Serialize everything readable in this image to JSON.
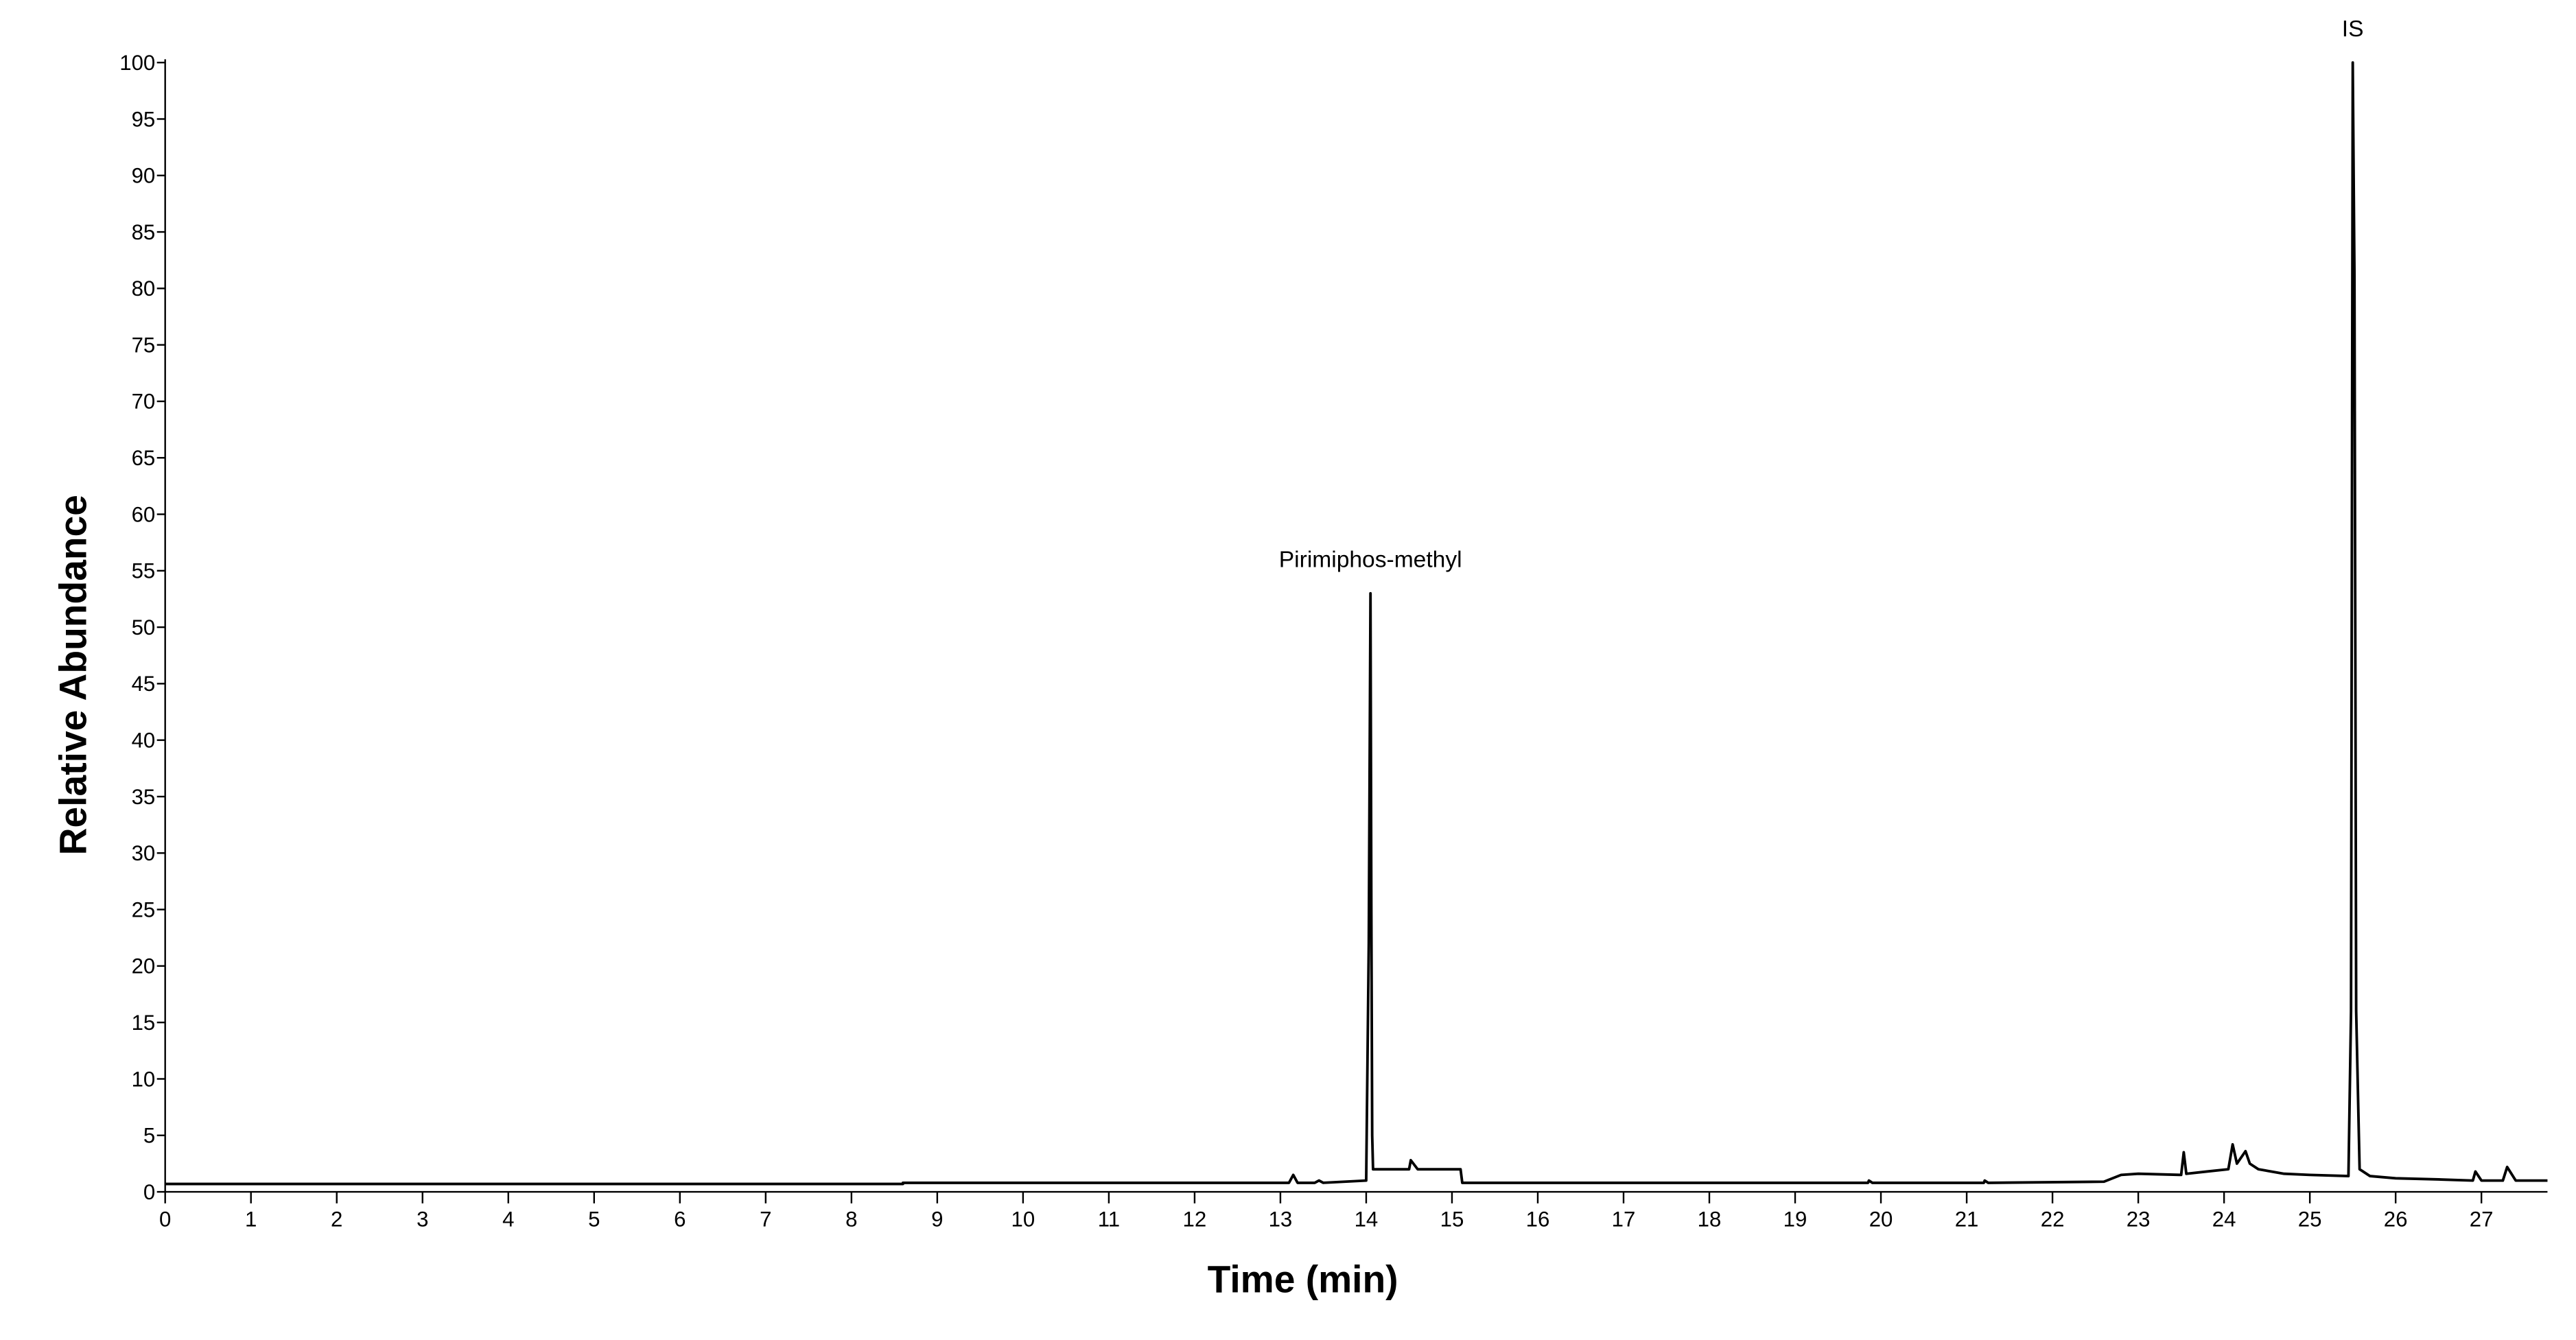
{
  "chart_data": {
    "type": "line",
    "xlabel": "Time (min)",
    "ylabel": "Relative Abundance",
    "color": "#000000",
    "x": [
      0,
      8.6,
      8.6,
      13.1,
      13.15,
      13.2,
      13.4,
      13.45,
      13.5,
      14.0,
      14.03,
      14.05,
      14.06,
      14.07,
      14.08,
      14.1,
      14.3,
      14.5,
      14.52,
      14.6,
      15.1,
      15.12,
      19.85,
      19.86,
      19.9,
      21.2,
      21.21,
      21.25,
      22.6,
      22.8,
      23.0,
      23.5,
      23.53,
      23.56,
      23.8,
      24.05,
      24.1,
      24.15,
      24.25,
      24.3,
      24.4,
      24.7,
      25.0,
      25.45,
      25.48,
      25.5,
      25.52,
      25.54,
      25.58,
      25.7,
      26.0,
      26.5,
      26.9,
      26.93,
      27.0,
      27.25,
      27.3,
      27.4,
      27.77
    ],
    "values": [
      0.7,
      0.7,
      0.8,
      0.8,
      1.5,
      0.8,
      0.8,
      1.0,
      0.8,
      1.0,
      22,
      53,
      25,
      5,
      2,
      2,
      2,
      2,
      2.8,
      2,
      2,
      0.8,
      0.8,
      1.0,
      0.8,
      0.8,
      1.0,
      0.8,
      0.9,
      1.5,
      1.6,
      1.5,
      3.5,
      1.6,
      1.8,
      2,
      4.2,
      2.5,
      3.6,
      2.5,
      2,
      1.6,
      1.5,
      1.4,
      16,
      100,
      81,
      16,
      2,
      1.4,
      1.2,
      1.1,
      1.0,
      1.8,
      1.0,
      1.0,
      2.2,
      1.0,
      1.0
    ],
    "annotations": [
      {
        "text": "Pirimiphos-methyl",
        "x": 14.05
      },
      {
        "text": "IS",
        "x": 25.5
      }
    ],
    "xlim": [
      0,
      27.77
    ],
    "ylim": [
      0,
      100
    ],
    "xticks": [
      0,
      1,
      2,
      3,
      4,
      5,
      6,
      7,
      8,
      9,
      10,
      11,
      12,
      13,
      14,
      15,
      16,
      17,
      18,
      19,
      20,
      21,
      22,
      23,
      24,
      25,
      26,
      27
    ],
    "yticks": [
      0,
      5,
      10,
      15,
      20,
      25,
      30,
      35,
      40,
      45,
      50,
      55,
      60,
      65,
      70,
      75,
      80,
      85,
      90,
      95,
      100
    ]
  }
}
